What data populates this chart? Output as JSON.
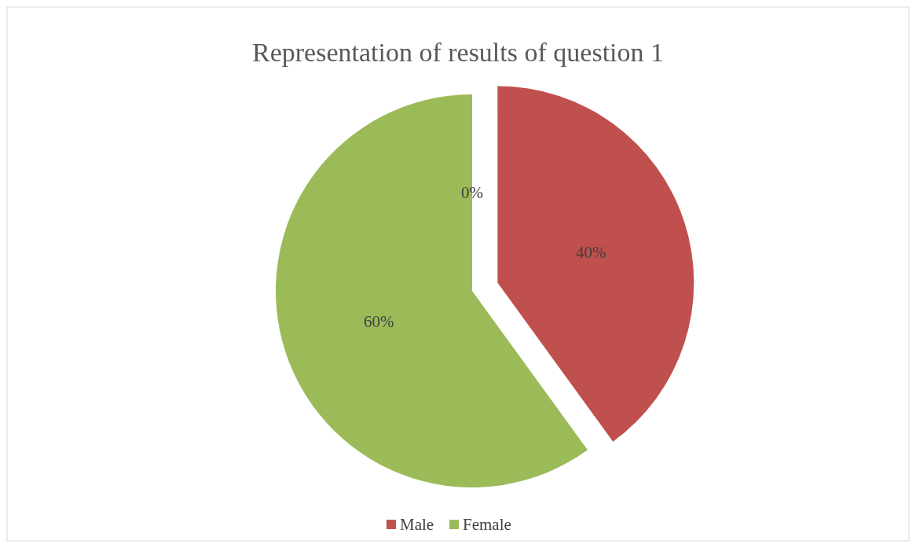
{
  "chart_data": {
    "type": "pie",
    "title": "Representation of results of question 1",
    "categories": [
      "Male",
      "Female",
      null
    ],
    "values": [
      40,
      60,
      0
    ],
    "colors": [
      "#c0504d",
      "#9bbb59",
      "#4f81bd"
    ],
    "value_labels": [
      "40%",
      "60%",
      "0%"
    ],
    "legend": "bottom"
  }
}
